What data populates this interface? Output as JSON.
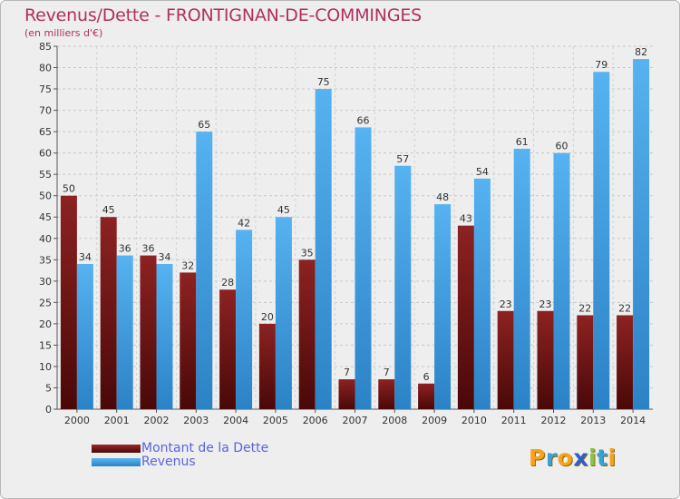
{
  "header": {
    "title": "Revenus/Dette - FRONTIGNAN-DE-COMMINGES",
    "subtitle": "(en milliers d'€)"
  },
  "logo": {
    "text": "Proxiti",
    "letter_colors": [
      "#f7a21b",
      "#3aa0d8",
      "#f7a21b",
      "#2f5fcf",
      "#8bc34a",
      "#3aa0d8",
      "#f7a21b"
    ]
  },
  "colors": {
    "dette": "#8a1d1d",
    "revenus": "#46a3e6",
    "title": "#b03060",
    "legend_text": "#5a63e0"
  },
  "legend": {
    "items": [
      {
        "label": "Montant de la Dette",
        "color": "#7a1818"
      },
      {
        "label": "Revenus",
        "color": "#46a3e6"
      }
    ]
  },
  "chart_data": {
    "type": "bar",
    "title": "Revenus/Dette - FRONTIGNAN-DE-COMMINGES",
    "subtitle": "(en milliers d'€)",
    "xlabel": "",
    "ylabel": "",
    "categories": [
      "2000",
      "2001",
      "2002",
      "2003",
      "2004",
      "2005",
      "2006",
      "2007",
      "2008",
      "2009",
      "2010",
      "2011",
      "2012",
      "2013",
      "2014"
    ],
    "series": [
      {
        "name": "Montant de la Dette",
        "values": [
          50,
          45,
          36,
          32,
          28,
          20,
          35,
          7,
          7,
          6,
          43,
          23,
          23,
          22,
          22
        ]
      },
      {
        "name": "Revenus",
        "values": [
          34,
          36,
          34,
          65,
          42,
          45,
          75,
          66,
          57,
          48,
          54,
          61,
          60,
          79,
          82
        ]
      }
    ],
    "ylim": [
      0,
      85
    ],
    "yticks": [
      0,
      5,
      10,
      15,
      20,
      25,
      30,
      35,
      40,
      45,
      50,
      55,
      60,
      65,
      70,
      75,
      80,
      85
    ],
    "grid": "horizontal dashed",
    "legend_position": "bottom-left",
    "data_labels": true
  }
}
